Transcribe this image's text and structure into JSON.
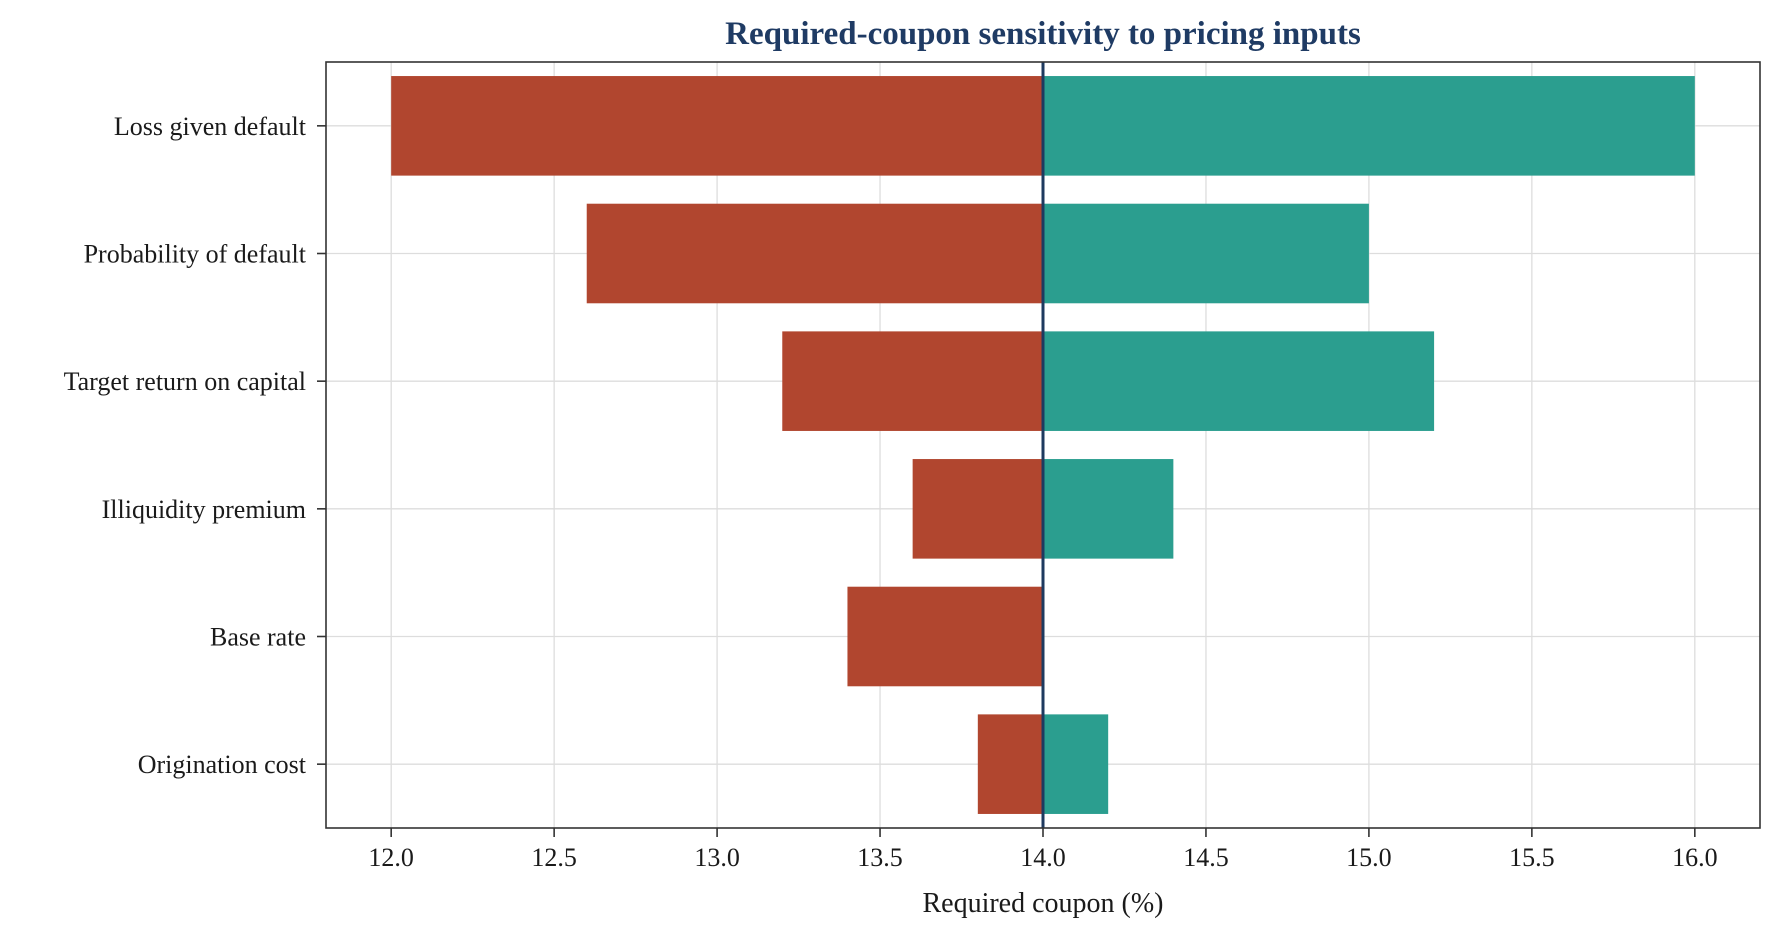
{
  "chart_data": {
    "type": "bar",
    "orientation": "horizontal",
    "variant": "tornado",
    "title": "Required-coupon sensitivity to pricing inputs",
    "xlabel": "Required coupon (%)",
    "ylabel": "",
    "xlim": [
      11.8,
      16.2
    ],
    "xticks": [
      12.0,
      12.5,
      13.0,
      13.5,
      14.0,
      14.5,
      15.0,
      15.5,
      16.0
    ],
    "xtick_labels": [
      "12.0",
      "12.5",
      "13.0",
      "13.5",
      "14.0",
      "14.5",
      "15.0",
      "15.5",
      "16.0"
    ],
    "baseline": 14.0,
    "grid": true,
    "categories": [
      "Loss given default",
      "Probability of default",
      "Target return on capital",
      "Illiquidity premium",
      "Base rate",
      "Origination cost"
    ],
    "series": [
      {
        "values": [
          12.0,
          12.6,
          13.2,
          13.6,
          13.4,
          13.8
        ]
      },
      {
        "values": [
          16.0,
          15.0,
          15.2,
          14.4,
          14.0,
          14.2
        ]
      }
    ],
    "colors": {
      "low": "#b1462f",
      "high": "#2b9e8f",
      "baseline": "#1e3a5f",
      "title": "#1f3b64",
      "grid": "#dddddd",
      "frame": "#333333"
    }
  }
}
